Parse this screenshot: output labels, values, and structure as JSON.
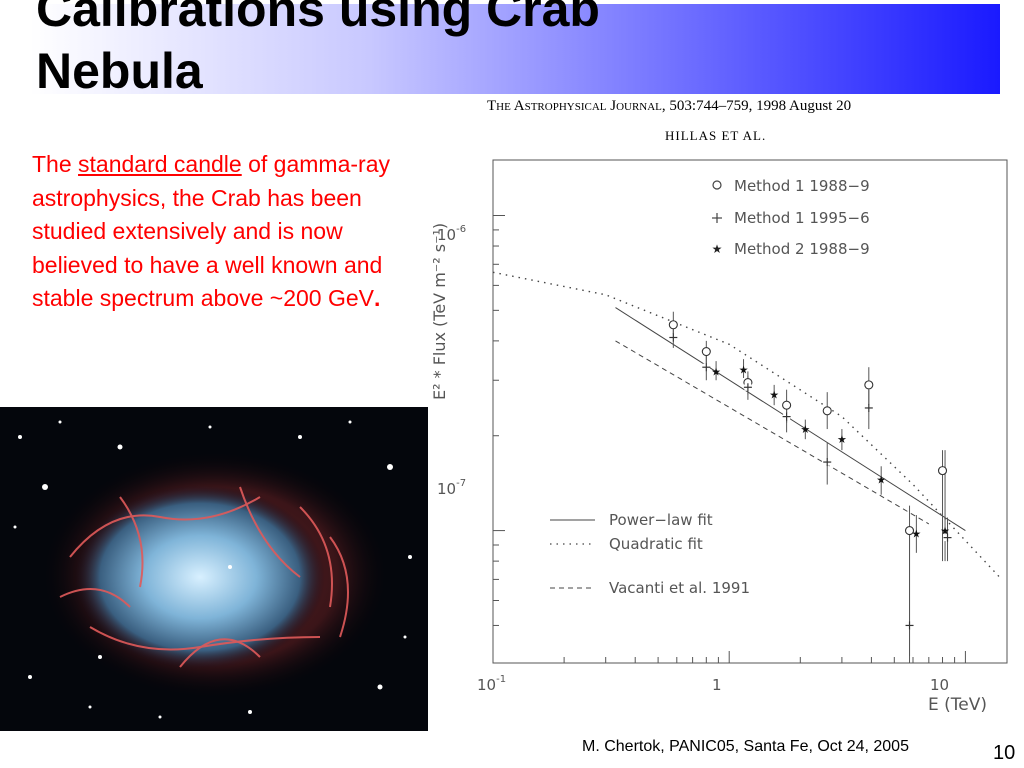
{
  "slide": {
    "title_line1": "Calibrations using Crab",
    "title_line2": "Nebula",
    "body": {
      "part1": "The ",
      "link": "standard candle",
      "part2": " of gamma-ray astrophysics, the Crab has been studied extensively and is now believed to have a well known and stable spectrum above ~200 GeV",
      "end": "."
    },
    "footer": "M. Chertok, PANIC05, Santa Fe, Oct 24, 2005",
    "page_number": "10"
  },
  "citation": {
    "journal": "The Astrophysical Journal",
    "volume_pages": ", 503:744–759, 1998 August 20",
    "authors": "HILLAS  ET  AL."
  },
  "chart_data": {
    "type": "scatter",
    "xlabel": "E (TeV)",
    "ylabel": "E² * Flux (TeV m⁻² s⁻¹)",
    "xscale": "log",
    "yscale": "log",
    "xlim": [
      0.1,
      15
    ],
    "ylim": [
      3.8e-08,
      1.5e-06
    ],
    "x_ticks": [
      "10⁻¹",
      "1",
      "10"
    ],
    "y_ticks": [
      "10⁻⁶",
      "10⁻⁷"
    ],
    "legend_top": [
      {
        "marker": "circle",
        "label": "Method 1 1988−9"
      },
      {
        "marker": "cross",
        "label": "Method 1 1995−6"
      },
      {
        "marker": "star",
        "label": "Method 2 1988−9"
      }
    ],
    "legend_bottom": [
      {
        "style": "solid",
        "label": "Power−law fit"
      },
      {
        "style": "dotted",
        "label": "Quadratic fit"
      },
      {
        "style": "dashed",
        "label": "Vacanti et al. 1991"
      }
    ],
    "series": [
      {
        "name": "Method 1 1988−9",
        "marker": "circle",
        "points": [
          {
            "x": 0.58,
            "y": 4.5e-07,
            "lo": 4.1e-07,
            "hi": 4.95e-07
          },
          {
            "x": 0.8,
            "y": 3.7e-07,
            "lo": 3.4e-07,
            "hi": 4e-07
          },
          {
            "x": 1.2,
            "y": 2.95e-07,
            "lo": 2.7e-07,
            "hi": 3.2e-07
          },
          {
            "x": 1.75,
            "y": 2.5e-07,
            "lo": 2.2e-07,
            "hi": 2.8e-07
          },
          {
            "x": 2.6,
            "y": 2.4e-07,
            "lo": 2.1e-07,
            "hi": 2.75e-07
          },
          {
            "x": 3.9,
            "y": 2.9e-07,
            "lo": 2.5e-07,
            "hi": 3.3e-07
          },
          {
            "x": 5.8,
            "y": 1e-07,
            "lo": 4e-08,
            "hi": 1.2e-07
          },
          {
            "x": 8.0,
            "y": 1.55e-07,
            "lo": 8e-08,
            "hi": 1.8e-07
          }
        ]
      },
      {
        "name": "Method 1 1995−6",
        "marker": "cross",
        "points": [
          {
            "x": 0.58,
            "y": 4.1e-07,
            "lo": 3.8e-07,
            "hi": 4.5e-07
          },
          {
            "x": 0.8,
            "y": 3.3e-07,
            "lo": 3e-07,
            "hi": 3.6e-07
          },
          {
            "x": 1.2,
            "y": 2.85e-07,
            "lo": 2.6e-07,
            "hi": 3.1e-07
          },
          {
            "x": 1.75,
            "y": 2.3e-07,
            "lo": 2.05e-07,
            "hi": 2.55e-07
          },
          {
            "x": 2.6,
            "y": 1.65e-07,
            "lo": 1.4e-07,
            "hi": 1.9e-07
          },
          {
            "x": 3.9,
            "y": 2.45e-07,
            "lo": 2.1e-07,
            "hi": 2.8e-07
          },
          {
            "x": 5.8,
            "y": 5e-08,
            "lo": 3.8e-08,
            "hi": 1e-07
          },
          {
            "x": 8.4,
            "y": 9.5e-08,
            "lo": 8e-08,
            "hi": 1.1e-07
          }
        ]
      },
      {
        "name": "Method 2 1988−9",
        "marker": "star",
        "points": [
          {
            "x": 0.88,
            "y": 3.2e-07,
            "lo": 3e-07,
            "hi": 3.45e-07
          },
          {
            "x": 1.15,
            "y": 3.25e-07,
            "lo": 3.05e-07,
            "hi": 3.5e-07
          },
          {
            "x": 1.55,
            "y": 2.7e-07,
            "lo": 2.5e-07,
            "hi": 2.9e-07
          },
          {
            "x": 2.1,
            "y": 2.1e-07,
            "lo": 1.95e-07,
            "hi": 2.25e-07
          },
          {
            "x": 3.0,
            "y": 1.95e-07,
            "lo": 1.8e-07,
            "hi": 2.1e-07
          },
          {
            "x": 4.4,
            "y": 1.45e-07,
            "lo": 1.3e-07,
            "hi": 1.6e-07
          },
          {
            "x": 6.2,
            "y": 9.8e-08,
            "lo": 8.5e-08,
            "hi": 1.12e-07
          },
          {
            "x": 8.2,
            "y": 1e-07,
            "lo": 8e-08,
            "hi": 1.8e-07
          }
        ]
      }
    ],
    "fits": [
      {
        "style": "solid",
        "points": [
          [
            0.33,
            5.1e-07
          ],
          [
            10.0,
            1e-07
          ]
        ]
      },
      {
        "style": "dotted",
        "points": [
          [
            0.1,
            6.6e-07
          ],
          [
            0.3,
            5.6e-07
          ],
          [
            1.0,
            3.9e-07
          ],
          [
            3.0,
            2.3e-07
          ],
          [
            6.0,
            1.4e-07
          ],
          [
            14.0,
            7.1e-08
          ]
        ]
      },
      {
        "style": "dashed",
        "points": [
          [
            0.33,
            4e-07
          ],
          [
            7.0,
            1.05e-07
          ]
        ]
      }
    ],
    "grid": false
  },
  "colors": {
    "body_text": "#ff0000",
    "title_gradient_end": "#1a1aff"
  }
}
